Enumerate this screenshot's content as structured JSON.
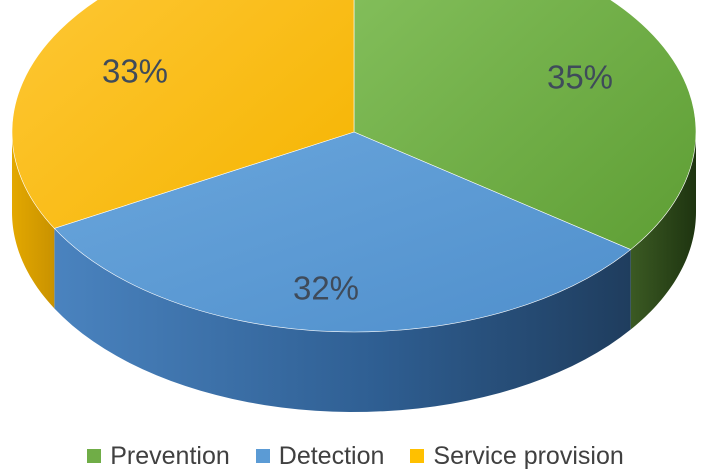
{
  "chart_data": {
    "type": "pie",
    "title": "",
    "variant": "3d",
    "legend_position": "bottom",
    "slices": [
      {
        "label": "Prevention",
        "value": 35,
        "value_label": "35%",
        "color": "#70ad47"
      },
      {
        "label": "Detection",
        "value": 32,
        "value_label": "32%",
        "color": "#5b9bd5"
      },
      {
        "label": "Service provision",
        "value": 33,
        "value_label": "33%",
        "color": "#ffc000"
      }
    ]
  }
}
